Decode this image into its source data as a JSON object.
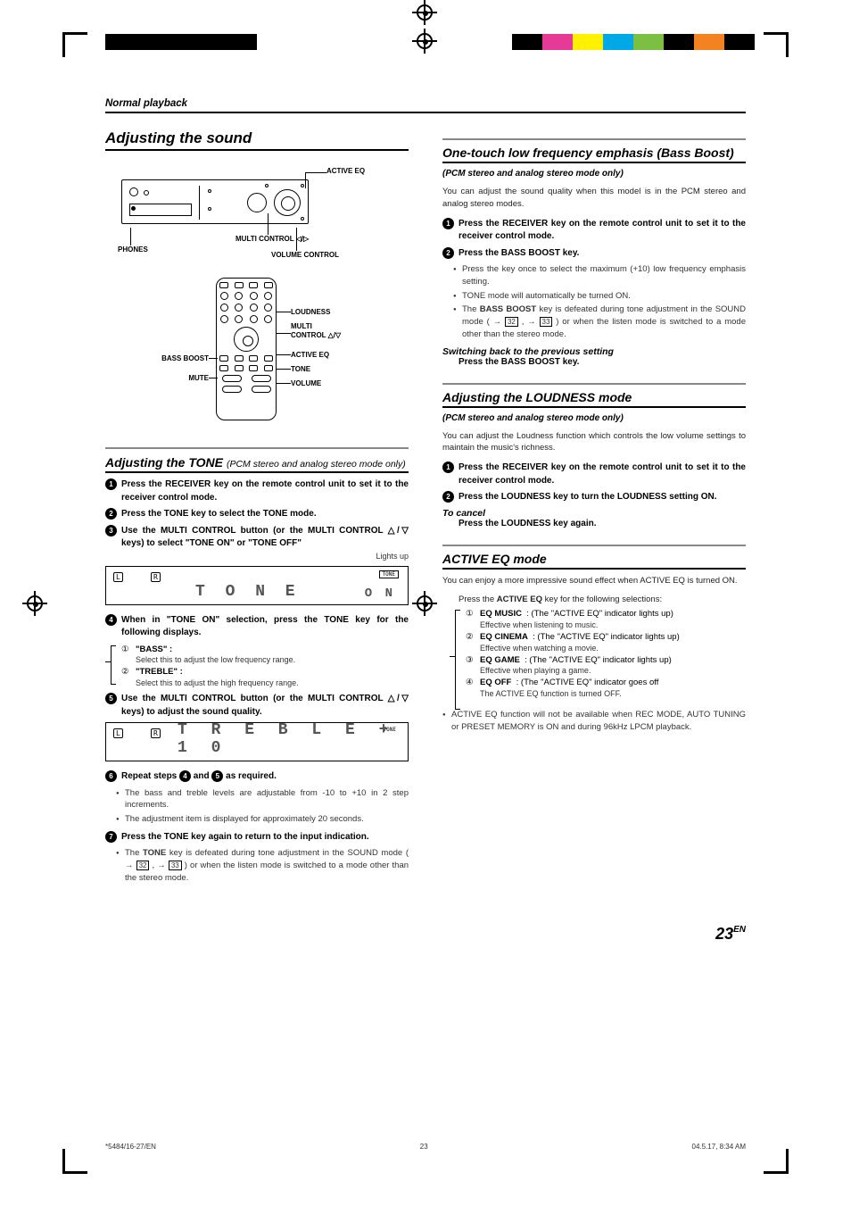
{
  "running_head": "Normal playback",
  "main_title": "Adjusting the sound",
  "diagram_labels": {
    "active_eq": "ACTIVE EQ",
    "multi_control_lr": "MULTI CONTROL ◁/▷",
    "phones": "PHONES",
    "volume_control": "VOLUME CONTROL",
    "loudness": "LOUDNESS",
    "multi_control_ud": "MULTI\nCONTROL △/▽",
    "bass_boost": "BASS BOOST",
    "active_eq2": "ACTIVE EQ",
    "mute": "MUTE",
    "tone": "TONE",
    "volume": "VOLUME"
  },
  "tone": {
    "title": "Adjusting the TONE",
    "title_suffix": "(PCM stereo and analog stereo mode only)",
    "steps": [
      {
        "n": "1",
        "text": "Press the  RECEIVER  key on the remote control unit to set it to the receiver control mode."
      },
      {
        "n": "2",
        "text": "Press the TONE key to select the TONE mode."
      },
      {
        "n": "3",
        "text": "Use the MULTI CONTROL button (or the MULTI CONTROL △/▽ keys) to select \"TONE ON\" or \"TONE OFF\"",
        "trail": "Lights up"
      },
      {
        "n": "4",
        "text": "When in \"TONE ON\" selection, press the TONE key for the following displays."
      },
      {
        "n": "5",
        "text": "Use the MULTI CONTROL button (or the MULTI CONTROL △/▽ keys) to adjust the sound quality."
      },
      {
        "n": "6",
        "text": "Repeat steps    and    as required.",
        "ref1": "4",
        "ref2": "5"
      },
      {
        "n": "7",
        "text": "Press the TONE key again to return to the input indication."
      }
    ],
    "sub": [
      {
        "n": "①",
        "label": "\"BASS\" :",
        "desc": "Select this to adjust the low frequency range."
      },
      {
        "n": "②",
        "label": "\"TREBLE\" :",
        "desc": "Select this to adjust the high frequency range."
      }
    ],
    "step6_bullets": [
      "The bass and treble levels are adjustable from -10 to +10 in 2 step increments.",
      "The adjustment item is displayed for approximately 20 seconds."
    ],
    "step7_bullet": "The TONE key is defeated during tone adjustment in the SOUND mode ( → 32 , → 33 ) or when the listen mode is switched to a mode other than the stereo mode.",
    "lcd1_text": "T O N E",
    "lcd1_on": "O N",
    "lcd1_tone": "TONE",
    "lcd2_text": "T R E B L E + 1 0",
    "lcd2_tone": "TONE"
  },
  "bass": {
    "title": "One-touch low frequency emphasis (Bass Boost)",
    "sub": "(PCM stereo and analog stereo mode only)",
    "intro": "You can adjust the sound quality when this model is in the PCM stereo and analog stereo modes.",
    "steps": [
      {
        "n": "1",
        "text": "Press the RECEIVER key on the remote control unit to set it to the receiver control mode."
      },
      {
        "n": "2",
        "text": "Press the BASS BOOST key."
      }
    ],
    "bullets": [
      "Press the key once to select the maximum (+10) low frequency emphasis setting.",
      "TONE mode will automatically be turned ON.",
      "The BASS BOOST key is defeated during tone adjustment in the SOUND mode ( → 32 , → 33 ) or when the listen mode is switched to a mode other than the stereo mode."
    ],
    "switch_title": "Switching back to the previous setting",
    "switch_text": "Press the BASS BOOST key."
  },
  "loudness": {
    "title": "Adjusting the LOUDNESS mode",
    "sub": "(PCM stereo and analog stereo mode only)",
    "intro": "You can adjust the Loudness function which controls the low volume settings to maintain the music's richness.",
    "steps": [
      {
        "n": "1",
        "text": "Press the RECEIVER key on the remote control unit to set it to the receiver control mode."
      },
      {
        "n": "2",
        "text": "Press the LOUDNESS key to turn the LOUDNESS setting ON."
      }
    ],
    "cancel_title": "To cancel",
    "cancel_text": "Press the LOUDNESS key again."
  },
  "activeeq": {
    "title": "ACTIVE EQ mode",
    "intro": "You can enjoy a more impressive sound effect when ACTIVE EQ is turned ON.",
    "press": "Press the ACTIVE EQ key for the following selections:",
    "items": [
      {
        "n": "①",
        "label": "EQ MUSIC",
        "tail": ": (The \"ACTIVE EQ\" indicator lights up)",
        "desc": "Effective when listening to music."
      },
      {
        "n": "②",
        "label": "EQ CINEMA",
        "tail": ": (The \"ACTIVE EQ\" indicator lights up)",
        "desc": "Effective when watching a movie."
      },
      {
        "n": "③",
        "label": "EQ GAME",
        "tail": ": (The \"ACTIVE EQ\" indicator lights up)",
        "desc": "Effective when playing a game."
      },
      {
        "n": "④",
        "label": "EQ OFF",
        "tail": ": (The \"ACTIVE EQ\" indicator  goes off",
        "desc": "The ACTIVE EQ function is turned OFF."
      }
    ],
    "note": "ACTIVE EQ function will not be available when REC MODE, AUTO TUNING or PRESET MEMORY is ON and during 96kHz LPCM playback."
  },
  "colors": [
    "#000000",
    "#e53b97",
    "#e9e200",
    "#00a9e5",
    "#7ac143",
    "#8a4b9e",
    "#f58220",
    "#e31b23"
  ],
  "page_number": "23",
  "page_suffix": "EN",
  "footer_left": "*5484/16-27/EN",
  "footer_mid": "23",
  "footer_right": "04.5.17, 8:34 AM"
}
